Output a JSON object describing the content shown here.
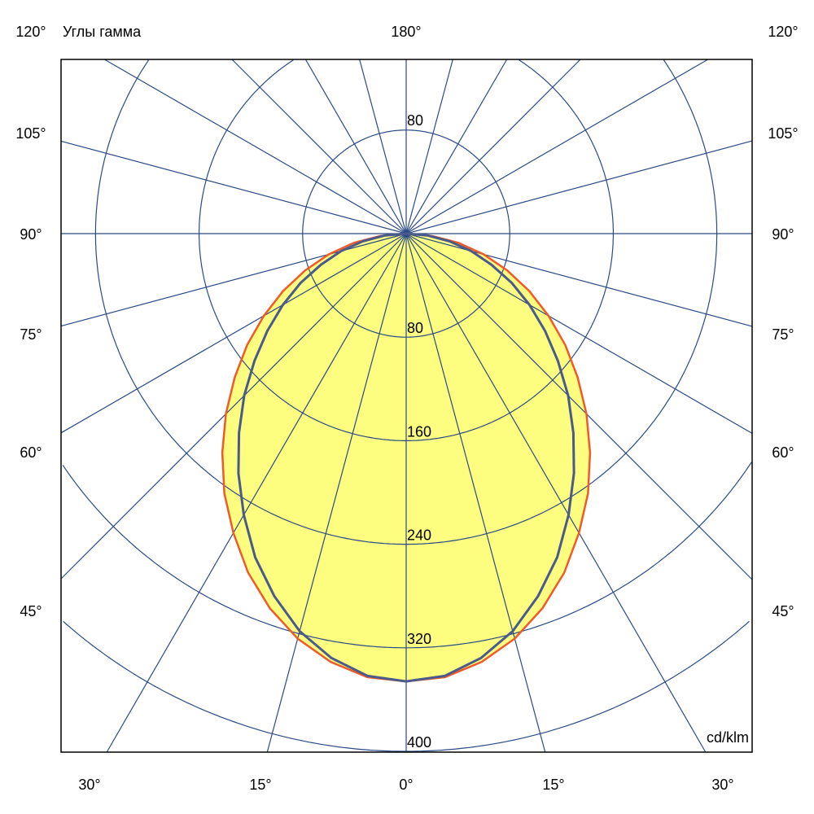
{
  "chart_data": {
    "type": "polar",
    "title": "Углы гамма",
    "unit_label": "cd/klm",
    "top_label": "180°",
    "radial_ticks": [
      80,
      160,
      240,
      320,
      400
    ],
    "radial_tick_labels": [
      "80",
      "160",
      "240",
      "320",
      "400"
    ],
    "upper_radial_label": "80",
    "side_angle_labels": [
      "120°",
      "105°",
      "90°",
      "75°",
      "60°",
      "45°"
    ],
    "side_angle_values": [
      120,
      105,
      90,
      75,
      60,
      45
    ],
    "bottom_angle_labels": [
      "30°",
      "15°",
      "0°",
      "15°",
      "30°"
    ],
    "bottom_angle_values": [
      -30,
      -15,
      0,
      15,
      30
    ],
    "angle_grid_step_deg": 15,
    "grid": true,
    "fill_color": "#fdfd80",
    "angles_deg": [
      0,
      5,
      10,
      15,
      20,
      25,
      30,
      35,
      40,
      45,
      50,
      55,
      60,
      65,
      70,
      75,
      80,
      85,
      90
    ],
    "series": [
      {
        "color": "#f05a28",
        "values": [
          346,
          344,
          336,
          324,
          308,
          289,
          267,
          245,
          221,
          197,
          173,
          150,
          127,
          105,
          83,
          62,
          41,
          20,
          0
        ]
      },
      {
        "color": "#4a5a8a",
        "values": [
          346,
          343,
          333,
          318,
          298,
          276,
          251,
          226,
          201,
          177,
          153,
          131,
          110,
          90,
          70,
          52,
          34,
          17,
          0
        ]
      }
    ]
  }
}
